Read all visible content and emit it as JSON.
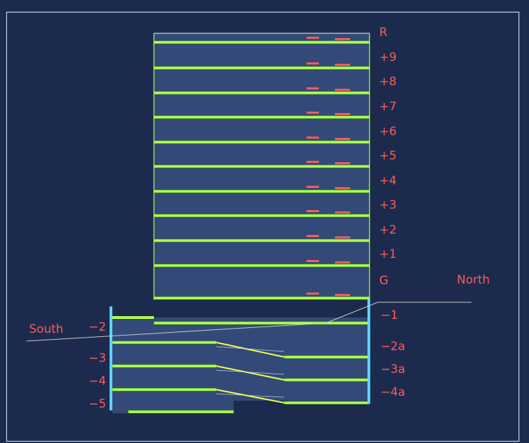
{
  "colors": {
    "background": "#1c2b4d",
    "border": "#c9d3e3",
    "slab": "#b7ff4a",
    "slab_dark": "#2c9b2e",
    "fill": "#334a78",
    "text": "#ff5a5a",
    "wall_cyan": "#5cd5ff",
    "ramp_yellow": "#f4ff4a",
    "ground": "#c9c9c9"
  },
  "orientation": {
    "south": "South",
    "north": "North"
  },
  "levels_right": [
    "R",
    "+9",
    "+8",
    "+7",
    "+6",
    "+5",
    "+4",
    "+3",
    "+2",
    "+1",
    "G",
    "−1",
    "−2a",
    "−3a",
    "−4a"
  ],
  "levels_left": [
    "−2",
    "−3",
    "−4",
    "−5"
  ]
}
